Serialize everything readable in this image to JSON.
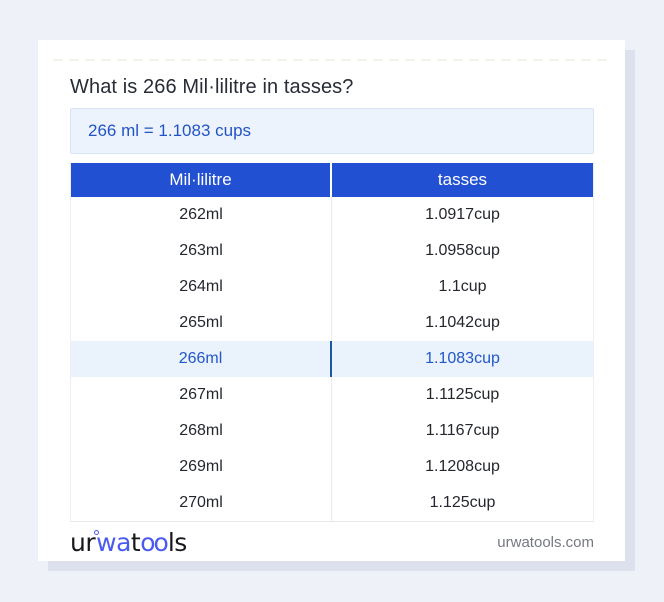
{
  "header": {
    "title": "What is 266 Mil·lilitre in tasses?",
    "result": "266 ml = 1.1083 cups"
  },
  "table": {
    "columns": [
      "Mil·lilitre",
      "tasses"
    ],
    "highlight_index": 4,
    "rows": [
      {
        "ml": "262ml",
        "cup": "1.0917cup"
      },
      {
        "ml": "263ml",
        "cup": "1.0958cup"
      },
      {
        "ml": "264ml",
        "cup": "1.1cup"
      },
      {
        "ml": "265ml",
        "cup": "1.1042cup"
      },
      {
        "ml": "266ml",
        "cup": "1.1083cup"
      },
      {
        "ml": "267ml",
        "cup": "1.1125cup"
      },
      {
        "ml": "268ml",
        "cup": "1.1167cup"
      },
      {
        "ml": "269ml",
        "cup": "1.1208cup"
      },
      {
        "ml": "270ml",
        "cup": "1.125cup"
      }
    ]
  },
  "footer": {
    "logo_ur": "ur",
    "logo_wa": "wa",
    "logo_t": "t",
    "logo_oo": "oo",
    "logo_ls": "ls",
    "domain": "urwatools.com"
  },
  "colors": {
    "page_background": "#eef1f8",
    "card_background": "#ffffff",
    "header_blue": "#2150d2",
    "highlight_row_background": "#eaf2fc",
    "highlight_text": "#2257c9",
    "result_box_background": "#ecf3fc",
    "logo_accent": "#4a5af0"
  }
}
